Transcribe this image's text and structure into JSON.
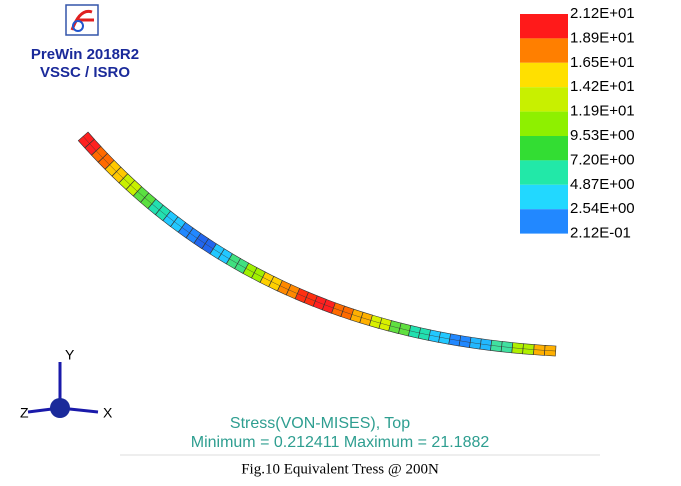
{
  "logo": {
    "title": "PreWin 2018R2",
    "org": "VSSC / ISRO"
  },
  "legend": {
    "labels": [
      "2.12E+01",
      "1.89E+01",
      "1.65E+01",
      "1.42E+01",
      "1.19E+01",
      "9.53E+00",
      "7.20E+00",
      "4.87E+00",
      "2.54E+00",
      "2.12E-01"
    ],
    "colors": [
      "#ff1a1a",
      "#ff7f00",
      "#ffe000",
      "#c8f000",
      "#8ef000",
      "#33dd33",
      "#22e8a8",
      "#22d8ff",
      "#2288ff"
    ]
  },
  "triad": {
    "y": "Y",
    "z": "Z",
    "x": "X"
  },
  "result": {
    "title": "Stress(VON-MISES), Top",
    "range": "Minimum = 0.212411  Maximum = 21.1882"
  },
  "caption": "Fig.10  Equivalent Tress @ 200N"
}
